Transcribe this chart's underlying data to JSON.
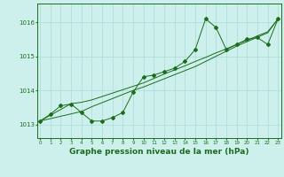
{
  "x": [
    0,
    1,
    2,
    3,
    4,
    5,
    6,
    7,
    8,
    9,
    10,
    11,
    12,
    13,
    14,
    15,
    16,
    17,
    18,
    19,
    20,
    21,
    22,
    23
  ],
  "y_main": [
    1013.1,
    1013.3,
    1013.55,
    1013.6,
    1013.35,
    1013.1,
    1013.1,
    1013.2,
    1013.35,
    1013.95,
    1014.4,
    1014.45,
    1014.55,
    1014.65,
    1014.85,
    1015.2,
    1016.1,
    1015.85,
    1015.2,
    1015.35,
    1015.5,
    1015.55,
    1015.35,
    1016.1
  ],
  "y_line1": [
    1013.1,
    1013.27,
    1013.44,
    1013.61,
    1013.65,
    1013.72,
    1013.82,
    1013.92,
    1014.02,
    1014.12,
    1014.22,
    1014.35,
    1014.48,
    1014.6,
    1014.72,
    1014.85,
    1014.97,
    1015.1,
    1015.22,
    1015.35,
    1015.47,
    1015.6,
    1015.72,
    1016.1
  ],
  "y_line2": [
    1013.1,
    1013.17,
    1013.24,
    1013.31,
    1013.38,
    1013.52,
    1013.64,
    1013.76,
    1013.88,
    1014.0,
    1014.1,
    1014.22,
    1014.34,
    1014.46,
    1014.58,
    1014.7,
    1014.85,
    1015.0,
    1015.15,
    1015.3,
    1015.43,
    1015.56,
    1015.69,
    1016.1
  ],
  "bg_color": "#cef0ec",
  "line_color": "#1a6e1a",
  "grid_color": "#a8ddd8",
  "ylabel_ticks": [
    1013,
    1014,
    1015,
    1016
  ],
  "xlabel_ticks": [
    0,
    1,
    2,
    3,
    4,
    5,
    6,
    7,
    8,
    9,
    10,
    11,
    12,
    13,
    14,
    15,
    16,
    17,
    18,
    19,
    20,
    21,
    22,
    23
  ],
  "title": "Graphe pression niveau de la mer (hPa)",
  "title_color": "#1a6e1a",
  "title_fontsize": 6.5,
  "marker": "D",
  "marker_size": 2.0,
  "ylim_min": 1012.6,
  "ylim_max": 1016.55
}
